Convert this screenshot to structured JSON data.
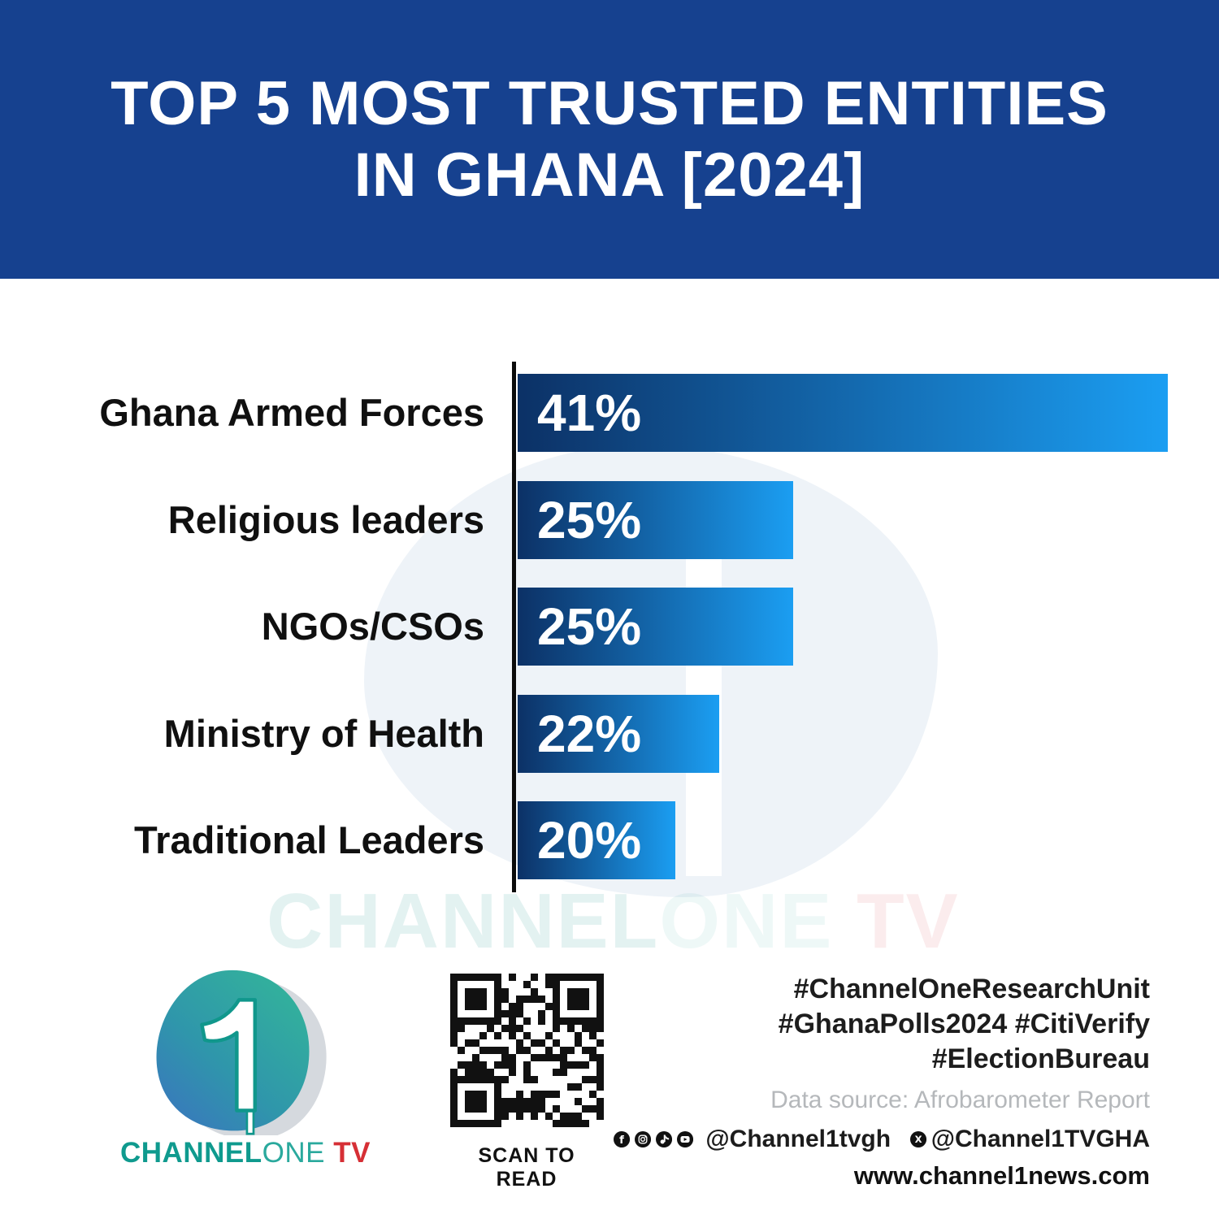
{
  "header": {
    "title_line1": "TOP 5 MOST TRUSTED ENTITIES",
    "title_line2": "IN GHANA [2024]",
    "bg_color": "#16418f"
  },
  "chart_data": {
    "type": "bar",
    "orientation": "horizontal",
    "title": "TOP 5 MOST TRUSTED ENTITIES IN GHANA [2024]",
    "categories": [
      "Ghana Armed Forces",
      "Religious leaders",
      "NGOs/CSOs",
      "Ministry of Health",
      "Traditional Leaders"
    ],
    "values": [
      41,
      25,
      25,
      22,
      20
    ],
    "unit": "%",
    "value_labels": [
      "41%",
      "25%",
      "25%",
      "22%",
      "20%"
    ],
    "xlabel": "",
    "ylabel": "",
    "xlim": [
      0,
      45
    ],
    "grid": false,
    "legend": false,
    "bar_color_gradient": [
      "#0c3166",
      "#1b9ef2"
    ],
    "axis_color": "#0b0b0b",
    "display_bar_fractions": [
      0.927,
      0.393,
      0.393,
      0.287,
      0.225
    ]
  },
  "watermark": {
    "channel": "CHANNEL",
    "one": "ONE",
    "tv": "TV"
  },
  "footer": {
    "logo": {
      "channel": "CHANNEL",
      "one": "ONE",
      "tv": "TV"
    },
    "qr_caption": "SCAN TO READ",
    "hashtags": [
      "#ChannelOneResearchUnit",
      "#GhanaPolls2024 #CitiVerify",
      "#ElectionBureau"
    ],
    "data_source": "Data source: Afrobarometer Report",
    "social": {
      "icons": [
        "facebook-icon",
        "instagram-icon",
        "tiktok-icon",
        "youtube-icon"
      ],
      "handle1": "@Channel1tvgh",
      "x_icon": "x-icon",
      "handle2": "@Channel1TVGHA"
    },
    "website": "www.channel1news.com"
  }
}
